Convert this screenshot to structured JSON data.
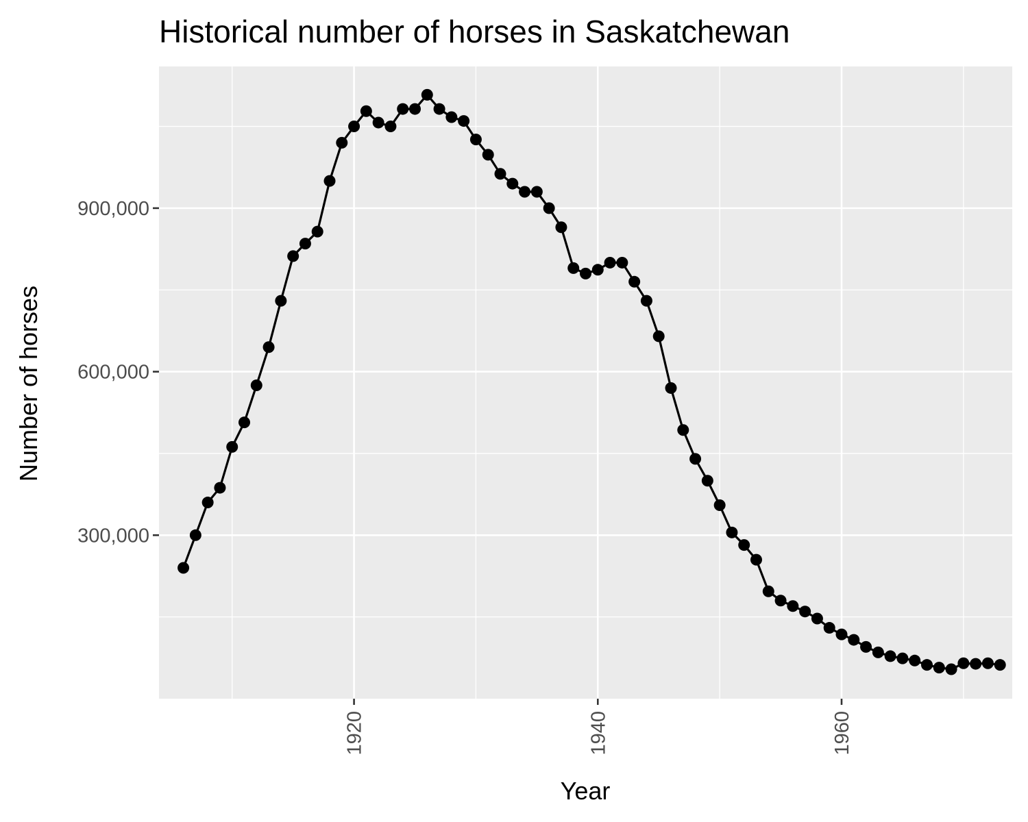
{
  "chart_data": {
    "type": "line",
    "title": "Historical number of horses in Saskatchewan",
    "xlabel": "Year",
    "ylabel": "Number of horses",
    "xlim": [
      1904,
      1974
    ],
    "ylim": [
      0,
      1160000
    ],
    "x_ticks": [
      1920,
      1940,
      1960
    ],
    "x_tick_labels": [
      "1920",
      "1940",
      "1960"
    ],
    "y_ticks": [
      300000,
      600000,
      900000
    ],
    "y_tick_labels": [
      "300,000",
      "600,000",
      "900,000"
    ],
    "markers": true,
    "grid": true,
    "colors": {
      "panel": "#EBEBEB",
      "grid": "#FFFFFF",
      "series": "#000000",
      "tick": "#333333"
    },
    "series": [
      {
        "x": [
          1906,
          1907,
          1908,
          1909,
          1910,
          1911,
          1912,
          1913,
          1914,
          1915,
          1916,
          1917,
          1918,
          1919,
          1920,
          1921,
          1922,
          1923,
          1924,
          1925,
          1926,
          1927,
          1928,
          1929,
          1930,
          1931,
          1932,
          1933,
          1934,
          1935,
          1936,
          1937,
          1938,
          1939,
          1940,
          1941,
          1942,
          1943,
          1944,
          1945,
          1946,
          1947,
          1948,
          1949,
          1950,
          1951,
          1952,
          1953,
          1954,
          1955,
          1956,
          1957,
          1958,
          1959,
          1960,
          1961,
          1962,
          1963,
          1964,
          1965,
          1966,
          1967,
          1968,
          1969,
          1970,
          1971,
          1972,
          1973
        ],
        "values": [
          240000,
          300000,
          360000,
          387000,
          462000,
          507000,
          575000,
          645000,
          730000,
          812000,
          835000,
          857000,
          950000,
          1020000,
          1050000,
          1078000,
          1057000,
          1050000,
          1082000,
          1082000,
          1108000,
          1082000,
          1067000,
          1060000,
          1026000,
          998000,
          963000,
          945000,
          930000,
          930000,
          900000,
          865000,
          790000,
          780000,
          787000,
          800000,
          800000,
          765000,
          730000,
          665000,
          570000,
          493000,
          440000,
          400000,
          355000,
          305000,
          282000,
          255000,
          197000,
          180000,
          170000,
          160000,
          147000,
          130000,
          118000,
          108000,
          95000,
          85000,
          78000,
          74000,
          70000,
          62000,
          57000,
          54000,
          65000,
          64000,
          65000,
          62000
        ]
      }
    ]
  }
}
